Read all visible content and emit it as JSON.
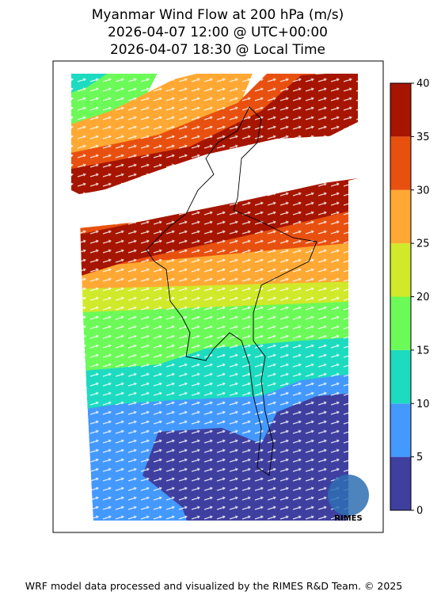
{
  "title": [
    "Myanmar Wind Flow at 200 hPa (m/s)",
    "2026-04-07 12:00 @ UTC+00:00",
    "2026-04-07 18:30 @ Local Time"
  ],
  "colorbar": {
    "lim": [
      0,
      40
    ],
    "ticks": [
      0,
      5,
      10,
      15,
      20,
      25,
      30,
      35,
      40
    ],
    "colors": [
      "#3f3fa0",
      "#4499ff",
      "#1ddbc0",
      "#6cfa58",
      "#d0e92a",
      "#ffa934",
      "#e8500f",
      "#a61500"
    ]
  },
  "logo": "RIMES",
  "footer": "WRF model data processed and visualized by the RIMES R&D Team. © 2025"
}
